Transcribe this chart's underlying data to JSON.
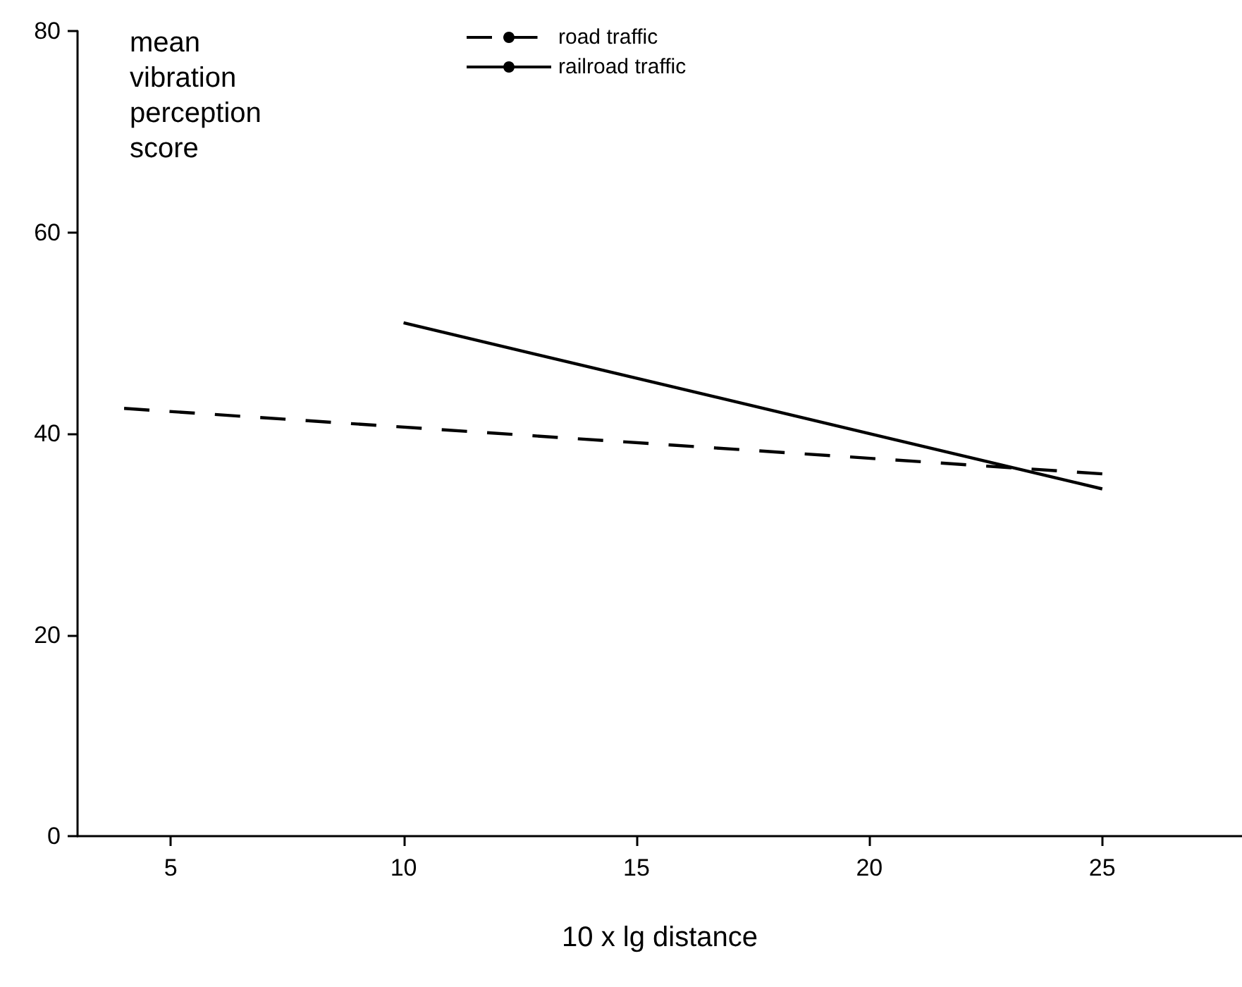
{
  "chart_data": {
    "type": "line",
    "xlabel": "10 x lg distance",
    "ylabel": "mean vibration perception score",
    "series": [
      {
        "name": "road traffic",
        "color": "#000000",
        "line_style": "dashed",
        "x": [
          4,
          25
        ],
        "values": [
          42.5,
          36
        ]
      },
      {
        "name": "railroad traffic",
        "color": "#000000",
        "line_style": "solid",
        "x": [
          10,
          25
        ],
        "values": [
          51,
          34.5
        ]
      }
    ],
    "xlim": [
      3,
      28
    ],
    "xticks": [
      5,
      10,
      15,
      20,
      25
    ],
    "ylim": [
      0,
      80
    ],
    "yticks": [
      0,
      20,
      40,
      60,
      80
    ],
    "grid": false,
    "legend": "top",
    "marker": "none"
  }
}
